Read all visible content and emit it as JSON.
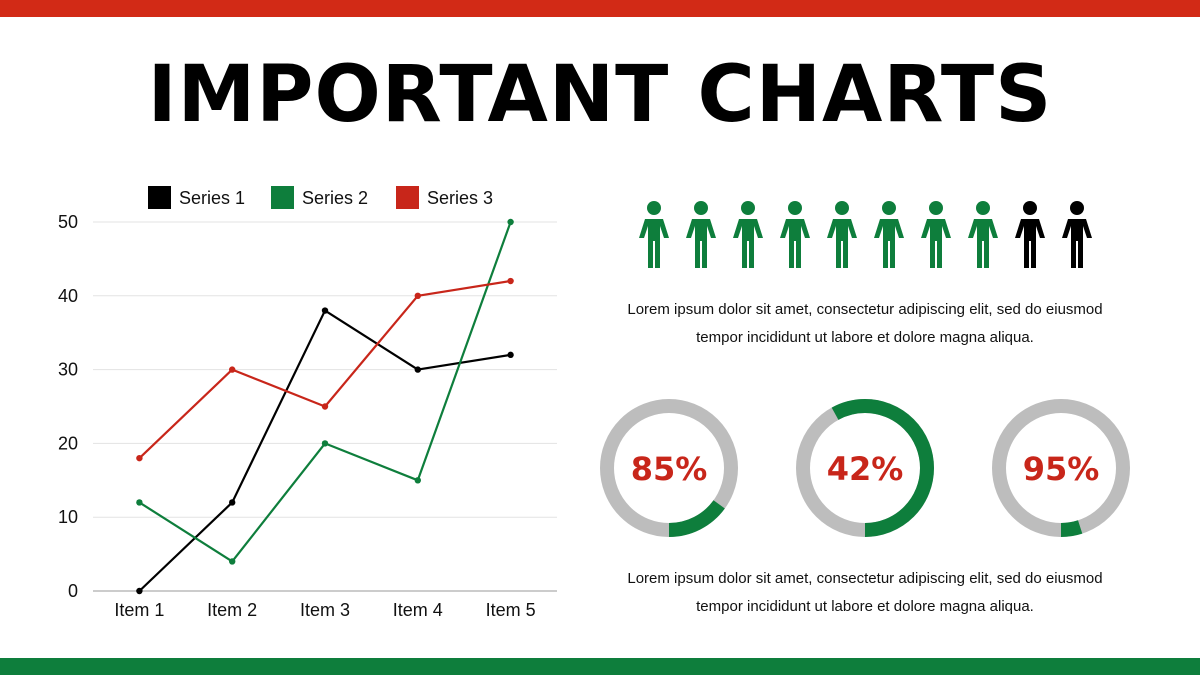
{
  "page": {
    "title": "IMPORTANT CHARTS",
    "paragraph_1": "Lorem ipsum dolor sit amet, consectetur adipiscing elit, sed do eiusmod tempor incididunt ut labore et dolore magna aliqua.",
    "paragraph_2": "Lorem ipsum dolor sit amet, consectetur adipiscing elit, sed do eiusmod tempor incididunt ut labore et dolore magna aliqua."
  },
  "colors": {
    "red": "#c8261a",
    "green": "#0e7e3c",
    "black": "#000000",
    "grey": "#bdbdbd",
    "percent_text": "#c8261a"
  },
  "chart_data": [
    {
      "type": "line",
      "categories": [
        "Item 1",
        "Item 2",
        "Item 3",
        "Item 4",
        "Item 5"
      ],
      "series": [
        {
          "name": "Series 1",
          "color": "#000000",
          "values": [
            0,
            12,
            38,
            30,
            32
          ]
        },
        {
          "name": "Series 2",
          "color": "#0e7e3c",
          "values": [
            12,
            4,
            20,
            15,
            50
          ]
        },
        {
          "name": "Series 3",
          "color": "#c8261a",
          "values": [
            18,
            30,
            25,
            40,
            42
          ]
        }
      ],
      "ylim": [
        0,
        50
      ],
      "yticks": [
        0,
        10,
        20,
        30,
        40,
        50
      ],
      "grid": true,
      "legend": "top"
    },
    {
      "type": "pictogram",
      "total": 10,
      "highlighted": 8,
      "highlight_color": "#0e7e3c",
      "base_color": "#000000"
    },
    {
      "type": "donut",
      "items": [
        {
          "label": "85%",
          "value": 0.15
        },
        {
          "label": "42%",
          "value": 0.58
        },
        {
          "label": "95%",
          "value": 0.05
        }
      ],
      "fill_color": "#0e7e3c",
      "track_color": "#bdbdbd"
    }
  ]
}
